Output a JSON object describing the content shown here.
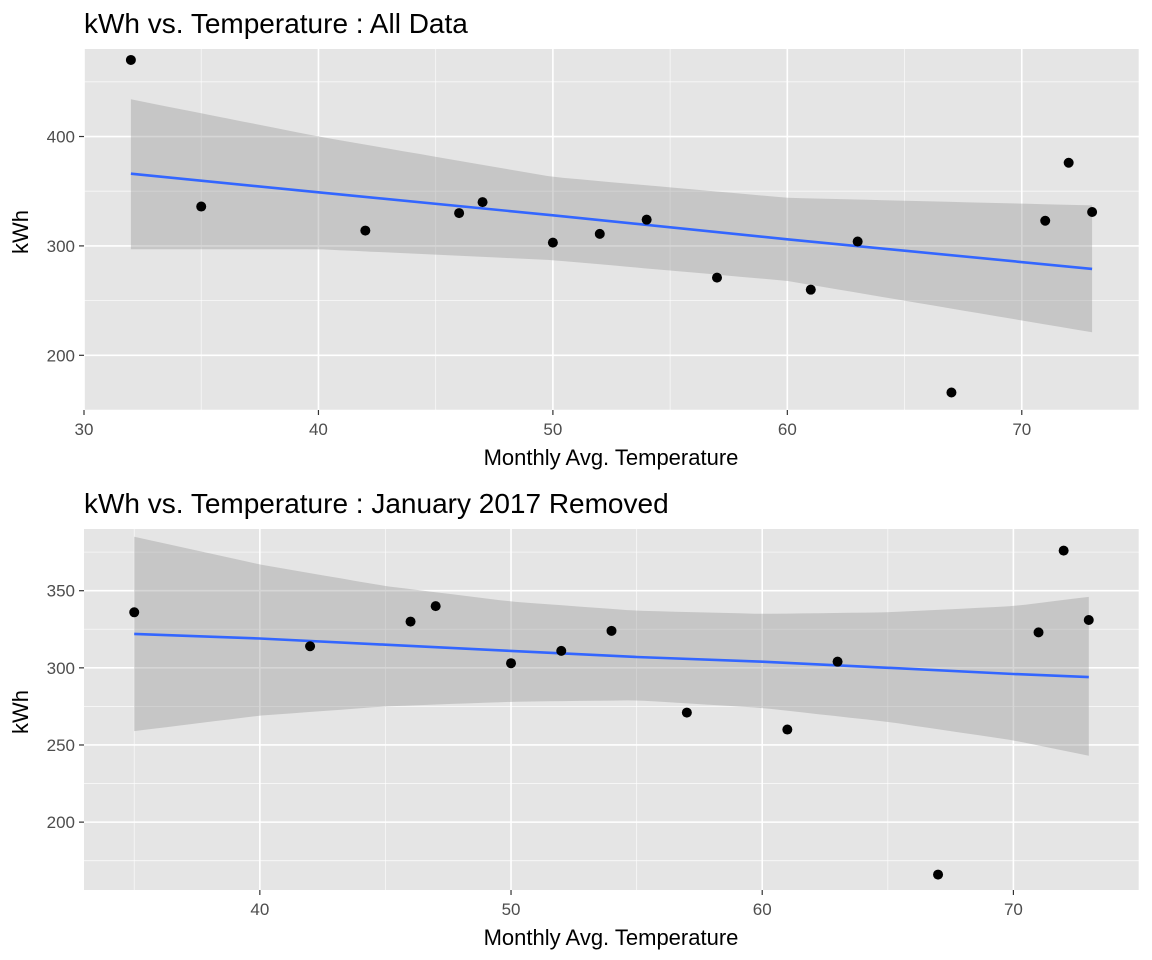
{
  "chart_data": [
    {
      "type": "scatter",
      "title": "kWh vs. Temperature : All Data",
      "xlabel": "Monthly Avg. Temperature",
      "ylabel": "kWh",
      "xlim": [
        30,
        75
      ],
      "ylim": [
        150,
        480
      ],
      "xticks": [
        30,
        40,
        50,
        60,
        70
      ],
      "yticks": [
        200,
        300,
        400
      ],
      "grid": true,
      "colors": {
        "panel": "#e5e5e5",
        "point": "#000000",
        "fit_line": "#3366ff",
        "ribbon": "#999999"
      },
      "points": [
        {
          "x": 32,
          "y": 470
        },
        {
          "x": 35,
          "y": 336
        },
        {
          "x": 42,
          "y": 314
        },
        {
          "x": 46,
          "y": 330
        },
        {
          "x": 47,
          "y": 340
        },
        {
          "x": 50,
          "y": 303
        },
        {
          "x": 52,
          "y": 311
        },
        {
          "x": 54,
          "y": 324
        },
        {
          "x": 57,
          "y": 271
        },
        {
          "x": 61,
          "y": 260
        },
        {
          "x": 63,
          "y": 304
        },
        {
          "x": 67,
          "y": 166
        },
        {
          "x": 71,
          "y": 323
        },
        {
          "x": 72,
          "y": 376
        },
        {
          "x": 73,
          "y": 331
        }
      ],
      "fit": {
        "x": [
          32,
          40,
          50,
          60,
          73
        ],
        "y": [
          366,
          349,
          328,
          306,
          279
        ],
        "lower": [
          297,
          297,
          287,
          268,
          221
        ],
        "upper": [
          434,
          400,
          363,
          344,
          337
        ]
      }
    },
    {
      "type": "scatter",
      "title": "kWh vs. Temperature : January 2017 Removed",
      "xlabel": "Monthly Avg. Temperature",
      "ylabel": "kWh",
      "xlim": [
        33,
        75
      ],
      "ylim": [
        156,
        390
      ],
      "xticks": [
        40,
        50,
        60,
        70
      ],
      "yticks": [
        200,
        250,
        300,
        350
      ],
      "grid": true,
      "colors": {
        "panel": "#e5e5e5",
        "point": "#000000",
        "fit_line": "#3366ff",
        "ribbon": "#999999"
      },
      "points": [
        {
          "x": 35,
          "y": 336
        },
        {
          "x": 42,
          "y": 314
        },
        {
          "x": 46,
          "y": 330
        },
        {
          "x": 47,
          "y": 340
        },
        {
          "x": 50,
          "y": 303
        },
        {
          "x": 52,
          "y": 311
        },
        {
          "x": 54,
          "y": 324
        },
        {
          "x": 57,
          "y": 271
        },
        {
          "x": 61,
          "y": 260
        },
        {
          "x": 63,
          "y": 304
        },
        {
          "x": 67,
          "y": 166
        },
        {
          "x": 71,
          "y": 323
        },
        {
          "x": 72,
          "y": 376
        },
        {
          "x": 73,
          "y": 331
        }
      ],
      "fit": {
        "x": [
          35,
          40,
          45,
          50,
          55,
          60,
          65,
          70,
          73
        ],
        "y": [
          322,
          319,
          315,
          311,
          307,
          304,
          300,
          296,
          294
        ],
        "lower": [
          259,
          269,
          275,
          278,
          279,
          274,
          265,
          253,
          243
        ],
        "upper": [
          385,
          367,
          353,
          343,
          337,
          335,
          336,
          340,
          346
        ]
      }
    }
  ]
}
